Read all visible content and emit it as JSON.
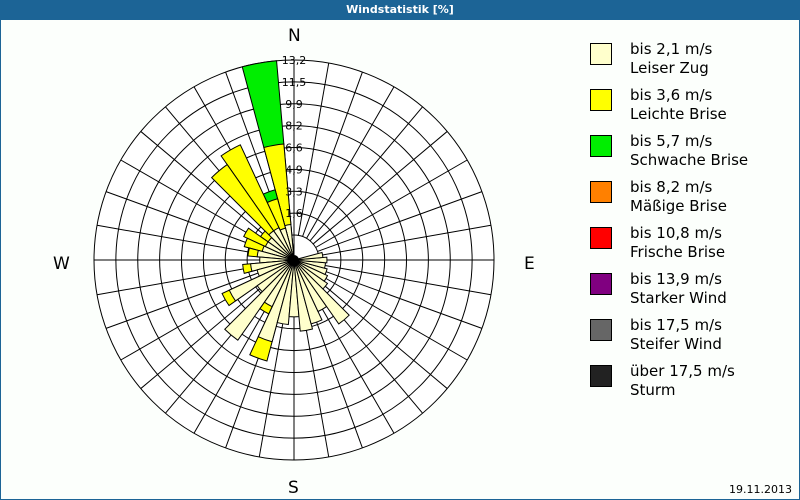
{
  "title": "Windstatistik [%]",
  "date": "19.11.2013",
  "compass": {
    "n": "N",
    "e": "E",
    "s": "S",
    "w": "W"
  },
  "legend": [
    {
      "range": "bis 2,1 m/s",
      "name": "Leiser Zug",
      "color": "#ffffcc"
    },
    {
      "range": "bis 3,6 m/s",
      "name": "Leichte Brise",
      "color": "#ffff00"
    },
    {
      "range": "bis 5,7 m/s",
      "name": "Schwache Brise",
      "color": "#00ee00"
    },
    {
      "range": "bis 8,2 m/s",
      "name": "Mäßige Brise",
      "color": "#ff8000"
    },
    {
      "range": "bis 10,8 m/s",
      "name": "Frische Brise",
      "color": "#ff0000"
    },
    {
      "range": "bis 13,9 m/s",
      "name": "Starker Wind",
      "color": "#800080"
    },
    {
      "range": "bis 17,5 m/s",
      "name": "Steifer Wind",
      "color": "#666666"
    },
    {
      "range": "über 17,5 m/s",
      "name": "Sturm",
      "color": "#222222"
    }
  ],
  "chart_data": {
    "type": "wind-rose",
    "title": "Windstatistik [%]",
    "unit": "%",
    "ring_labels": [
      "1,6",
      "3,3",
      "4,9",
      "6,6",
      "8,2",
      "9,9",
      "11,5",
      "13,2"
    ],
    "rmax": 13.2,
    "sector_width_deg": 10,
    "series": [
      "Leiser Zug",
      "Leichte Brise",
      "Schwache Brise",
      "Mäßige Brise",
      "Frische Brise",
      "Starker Wind",
      "Steifer Wind",
      "Sturm"
    ],
    "sectors": [
      {
        "dir": 350,
        "cumulative": [
          0.8,
          6.9,
          13.2
        ]
      },
      {
        "dir": 340,
        "cumulative": [
          0.6,
          2.9,
          3.6
        ]
      },
      {
        "dir": 330,
        "cumulative": [
          0.8,
          7.7
        ]
      },
      {
        "dir": 320,
        "cumulative": [
          0.8,
          6.9
        ]
      },
      {
        "dir": 310,
        "cumulative": [
          0.5,
          1.2
        ]
      },
      {
        "dir": 300,
        "cumulative": [
          0.5,
          2.3
        ]
      },
      {
        "dir": 290,
        "cumulative": [
          0.6,
          2.0
        ]
      },
      {
        "dir": 280,
        "cumulative": [
          0.9,
          1.6
        ]
      },
      {
        "dir": 270,
        "cumulative": [
          0.7
        ]
      },
      {
        "dir": 260,
        "cumulative": [
          1.4,
          2.0
        ]
      },
      {
        "dir": 250,
        "cumulative": [
          1.0
        ]
      },
      {
        "dir": 240,
        "cumulative": [
          3.5,
          4.1
        ]
      },
      {
        "dir": 230,
        "cumulative": [
          1.5
        ]
      },
      {
        "dir": 220,
        "cumulative": [
          5.5
        ]
      },
      {
        "dir": 210,
        "cumulative": [
          2.0,
          2.6
        ]
      },
      {
        "dir": 200,
        "cumulative": [
          4.5,
          6.0
        ]
      },
      {
        "dir": 190,
        "cumulative": [
          3.0
        ]
      },
      {
        "dir": 180,
        "cumulative": [
          2.4
        ]
      },
      {
        "dir": 170,
        "cumulative": [
          3.5
        ]
      },
      {
        "dir": 160,
        "cumulative": [
          3.1
        ]
      },
      {
        "dir": 150,
        "cumulative": [
          2.4
        ]
      },
      {
        "dir": 140,
        "cumulative": [
          4.0
        ]
      },
      {
        "dir": 130,
        "cumulative": [
          1.2
        ]
      },
      {
        "dir": 120,
        "cumulative": [
          0.9
        ]
      },
      {
        "dir": 110,
        "cumulative": [
          0.7
        ]
      },
      {
        "dir": 100,
        "cumulative": [
          0.5
        ]
      },
      {
        "dir": 90,
        "cumulative": [
          0.6
        ]
      },
      {
        "dir": 80,
        "cumulative": [
          0.3
        ]
      }
    ]
  }
}
